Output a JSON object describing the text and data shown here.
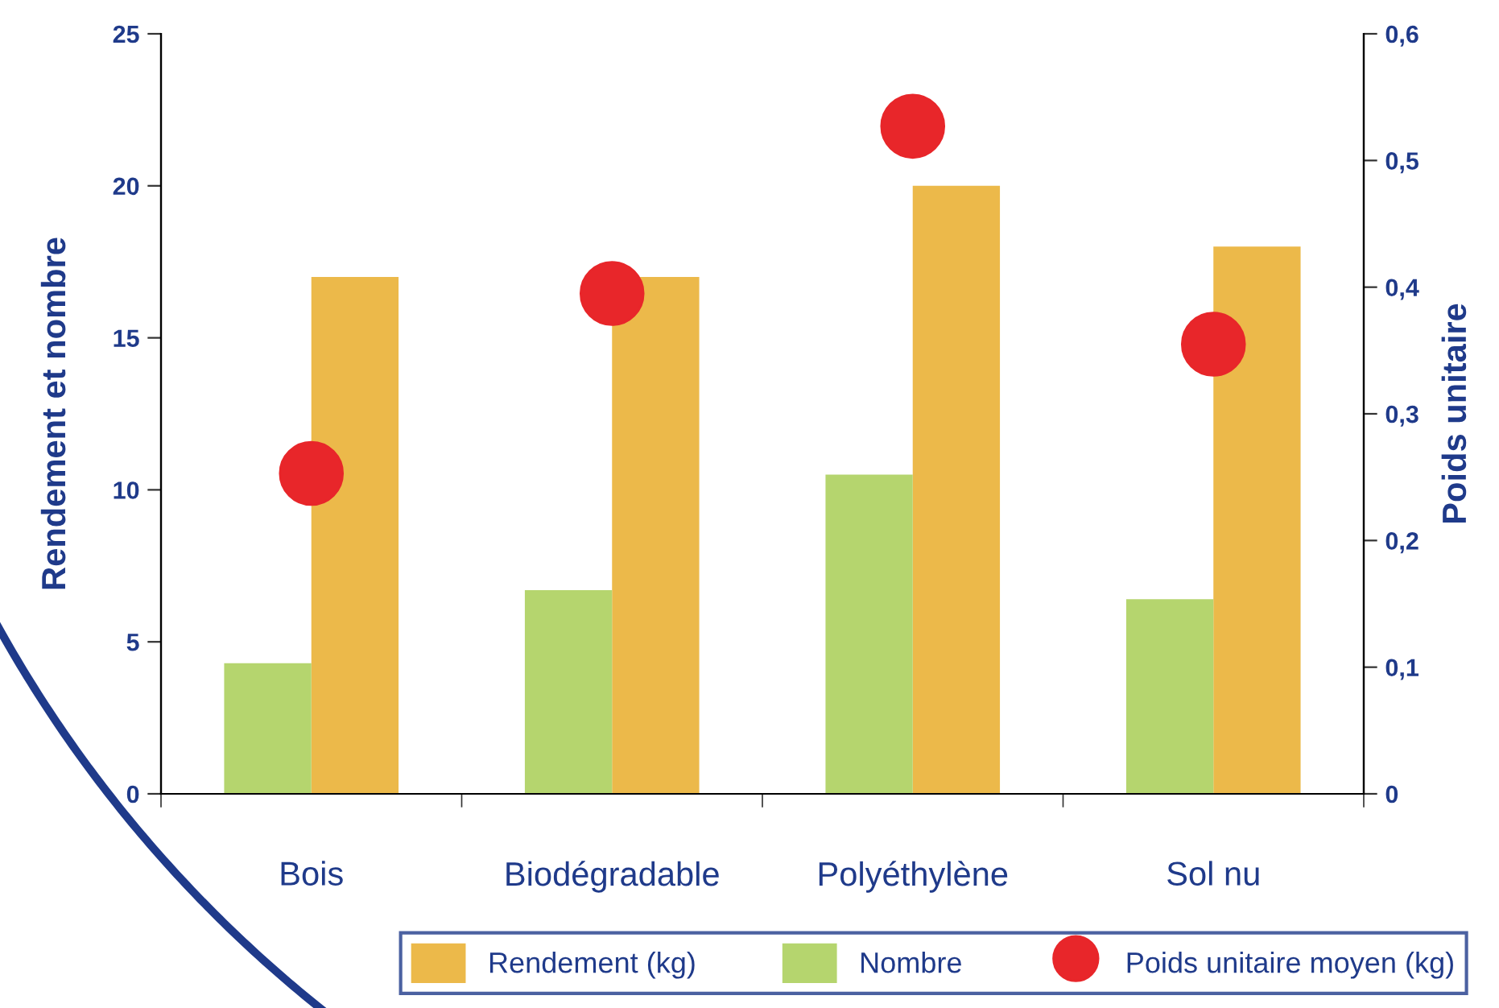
{
  "chart_data": {
    "type": "bar",
    "categories": [
      "Bois",
      "Biodégradable",
      "Polyéthylène",
      "Sol nu"
    ],
    "ylabel": "Rendement et nombre",
    "y2label": "Poids unitaire",
    "ylim": [
      0,
      25
    ],
    "yticks": [
      0,
      5,
      10,
      15,
      20,
      25
    ],
    "y2lim": [
      0,
      0.6
    ],
    "y2ticks": [
      {
        "value": 0,
        "label": "0"
      },
      {
        "value": 0.1,
        "label": "0,1"
      },
      {
        "value": 0.2,
        "label": "0,2"
      },
      {
        "value": 0.3,
        "label": "0,3"
      },
      {
        "value": 0.4,
        "label": "0,4"
      },
      {
        "value": 0.5,
        "label": "0,5"
      },
      {
        "value": 0.6,
        "label": "0,6"
      }
    ],
    "series": [
      {
        "name": "Rendement (kg)",
        "color": "#ecb94a",
        "values": [
          17.0,
          17.0,
          20.0,
          18.0
        ]
      },
      {
        "name": "Nombre",
        "color": "#b5d56e",
        "values": [
          4.3,
          6.7,
          10.5,
          6.4
        ]
      },
      {
        "name": "Poids unitaire moyen (kg)",
        "type": "scatter",
        "axis": "y2",
        "color": "#e8262a",
        "values": [
          0.253,
          0.395,
          0.527,
          0.355
        ]
      }
    ],
    "marker": "circle",
    "grid": false,
    "legend": "bottom"
  }
}
